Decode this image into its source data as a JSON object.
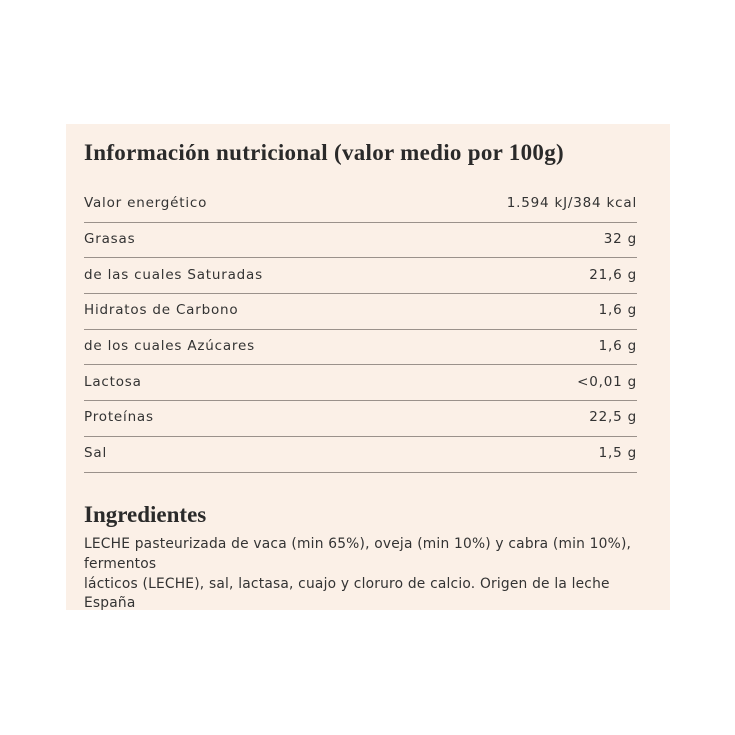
{
  "nutrition": {
    "title": "Información nutricional (valor medio por 100g)",
    "rows": [
      {
        "label": "Valor energético",
        "value": "1.594 kJ/384 kcal"
      },
      {
        "label": "Grasas",
        "value": "32 g"
      },
      {
        "label": "de las cuales Saturadas",
        "value": "21,6 g"
      },
      {
        "label": "Hidratos de Carbono",
        "value": "1,6 g"
      },
      {
        "label": "de los cuales Azúcares",
        "value": "1,6 g"
      },
      {
        "label": "Lactosa",
        "value": "<0,01 g"
      },
      {
        "label": "Proteínas",
        "value": "22,5 g"
      },
      {
        "label": "Sal",
        "value": "1,5 g"
      }
    ]
  },
  "ingredients": {
    "title": "Ingredientes",
    "lines": [
      "LECHE pasteurizada de vaca (min 65%), oveja (min 10%) y cabra (min 10%),",
      "fermentos",
      "lácticos (LECHE), sal, lactasa, cuajo y cloruro de calcio. Origen de la leche",
      "España"
    ]
  },
  "colors": {
    "panel_background": "#fbf0e7",
    "divider": "#9a918b",
    "text": "#333333"
  }
}
